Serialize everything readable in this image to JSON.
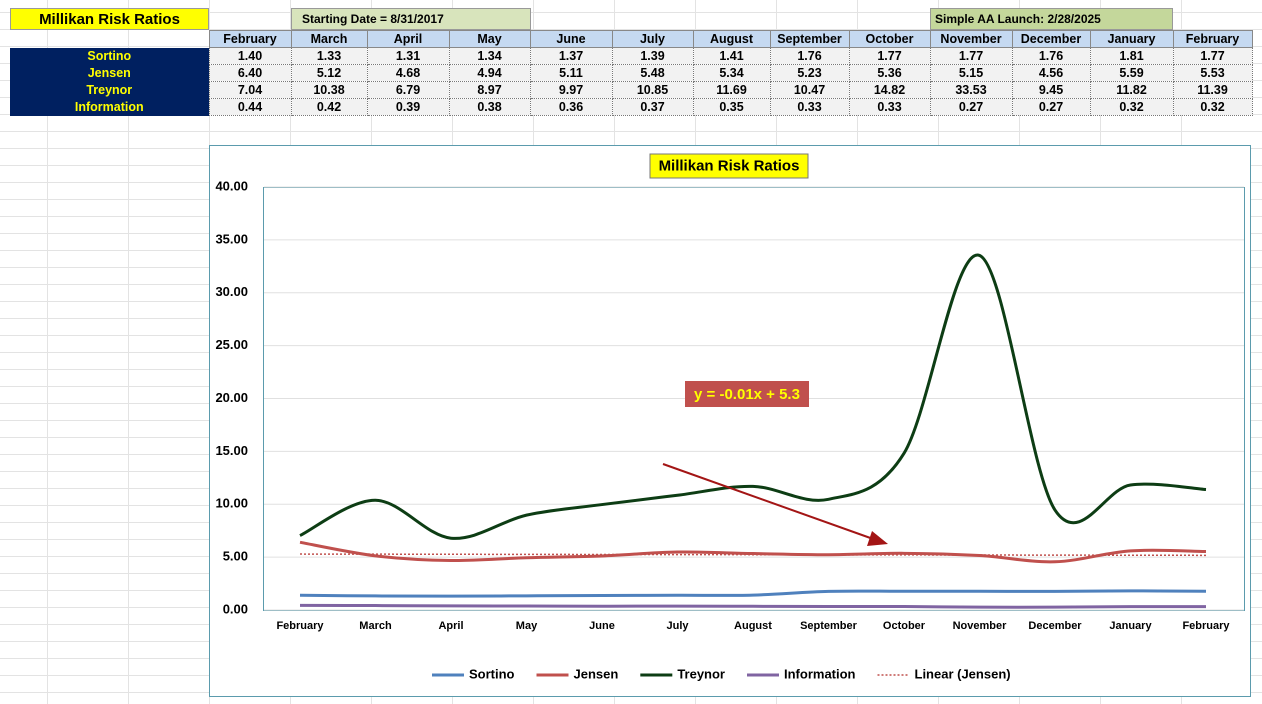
{
  "table": {
    "title": "Millikan Risk Ratios",
    "start_note": "Starting Date = 8/31/2017",
    "launch_note": "Simple AA Launch: 2/28/2025",
    "columns": [
      "February",
      "March",
      "April",
      "May",
      "June",
      "July",
      "August",
      "September",
      "October",
      "November",
      "December",
      "January",
      "February"
    ],
    "rows": [
      {
        "label": "Sortino",
        "values": [
          "1.40",
          "1.33",
          "1.31",
          "1.34",
          "1.37",
          "1.39",
          "1.41",
          "1.76",
          "1.77",
          "1.77",
          "1.76",
          "1.81",
          "1.77"
        ]
      },
      {
        "label": "Jensen",
        "values": [
          "6.40",
          "5.12",
          "4.68",
          "4.94",
          "5.11",
          "5.48",
          "5.34",
          "5.23",
          "5.36",
          "5.15",
          "4.56",
          "5.59",
          "5.53"
        ]
      },
      {
        "label": "Treynor",
        "values": [
          "7.04",
          "10.38",
          "6.79",
          "8.97",
          "9.97",
          "10.85",
          "11.69",
          "10.47",
          "14.82",
          "33.53",
          "9.45",
          "11.82",
          "11.39"
        ]
      },
      {
        "label": "Information",
        "values": [
          "0.44",
          "0.42",
          "0.39",
          "0.38",
          "0.36",
          "0.37",
          "0.35",
          "0.33",
          "0.33",
          "0.27",
          "0.27",
          "0.32",
          "0.32"
        ]
      }
    ]
  },
  "chart_data": {
    "type": "line",
    "title": "Millikan Risk Ratios",
    "annotation": "y = -0.01x + 5.3",
    "categories": [
      "February",
      "March",
      "April",
      "May",
      "June",
      "July",
      "August",
      "September",
      "October",
      "November",
      "December",
      "January",
      "February"
    ],
    "series": [
      {
        "name": "Sortino",
        "color": "#4f81bd",
        "values": [
          1.4,
          1.33,
          1.31,
          1.34,
          1.37,
          1.39,
          1.41,
          1.76,
          1.77,
          1.77,
          1.76,
          1.81,
          1.77
        ]
      },
      {
        "name": "Jensen",
        "color": "#c0504d",
        "values": [
          6.4,
          5.12,
          4.68,
          4.94,
          5.11,
          5.48,
          5.34,
          5.23,
          5.36,
          5.15,
          4.56,
          5.59,
          5.53
        ]
      },
      {
        "name": "Treynor",
        "color": "#0d3d14",
        "values": [
          7.04,
          10.38,
          6.79,
          8.97,
          9.97,
          10.85,
          11.69,
          10.47,
          14.82,
          33.53,
          9.45,
          11.82,
          11.39
        ]
      },
      {
        "name": "Information",
        "color": "#8064a2",
        "values": [
          0.44,
          0.42,
          0.39,
          0.38,
          0.36,
          0.37,
          0.35,
          0.33,
          0.33,
          0.27,
          0.27,
          0.32,
          0.32
        ]
      },
      {
        "name": "Linear (Jensen)",
        "color": "#c0504d",
        "dashed": true,
        "values": [
          5.29,
          5.28,
          5.27,
          5.26,
          5.25,
          5.24,
          5.23,
          5.22,
          5.21,
          5.2,
          5.19,
          5.18,
          5.17
        ]
      }
    ],
    "ylim": [
      0,
      40
    ],
    "yticks": [
      {
        "value": 0,
        "label": "0.00"
      },
      {
        "value": 5,
        "label": "5.00"
      },
      {
        "value": 10,
        "label": "10.00"
      },
      {
        "value": 15,
        "label": "15.00"
      },
      {
        "value": 20,
        "label": "20.00"
      },
      {
        "value": 25,
        "label": "25.00"
      },
      {
        "value": 30,
        "label": "30.00"
      },
      {
        "value": 35,
        "label": "35.00"
      },
      {
        "value": 40,
        "label": "40.00"
      }
    ],
    "grid": true
  }
}
